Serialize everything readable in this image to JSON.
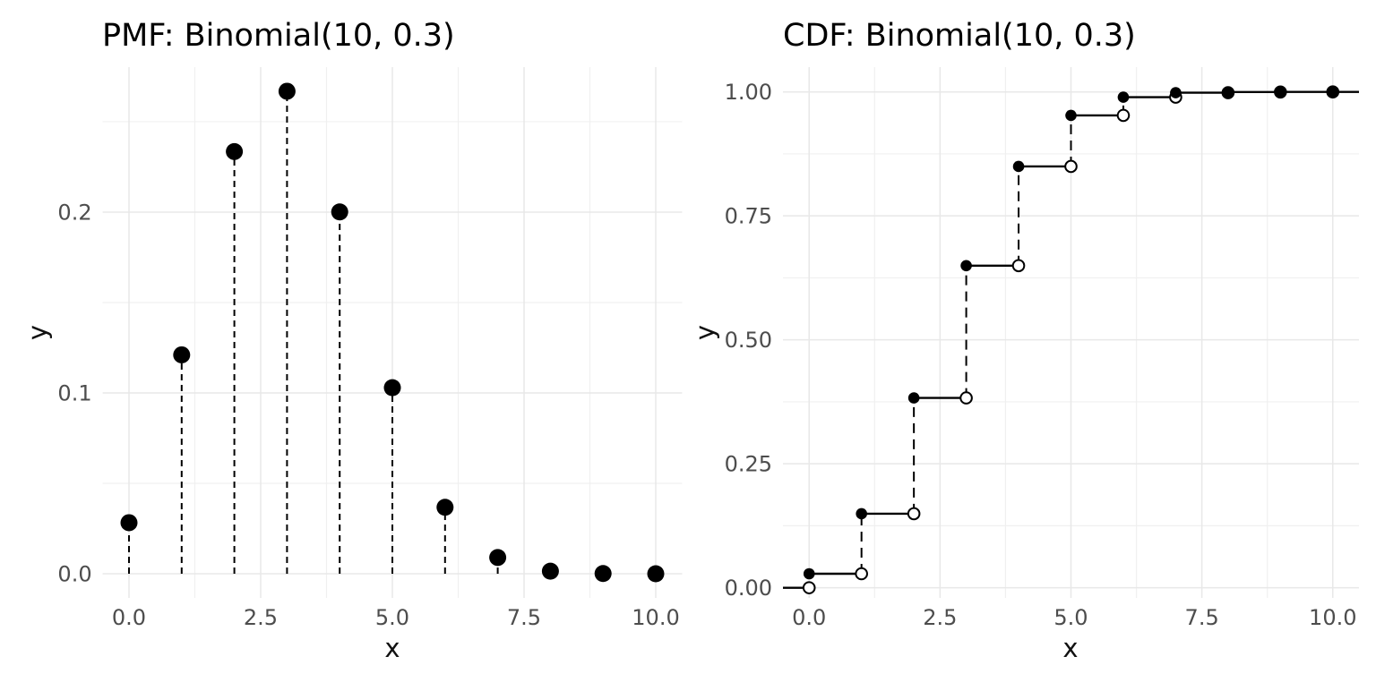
{
  "figure": {
    "background": "#ffffff",
    "grid_major_color": "#e8e8e8",
    "grid_minor_color": "#f0f0f0",
    "data_color": "#000000",
    "open_point_fill": "#ffffff",
    "tick_label_color": "#4d4d4d"
  },
  "chart_data": [
    {
      "type": "stem",
      "title": "PMF: Binomial(10, 0.3)",
      "xlabel": "x",
      "ylabel": "y",
      "x": [
        0,
        1,
        2,
        3,
        4,
        5,
        6,
        7,
        8,
        9,
        10
      ],
      "y": [
        0.0282475,
        0.1210608,
        0.2334744,
        0.2668279,
        0.2001209,
        0.1029193,
        0.0367569,
        0.0090017,
        0.0014467,
        0.0001378,
        5.9e-06
      ],
      "stem_baseline": 0,
      "stem_style": "dashed",
      "xlim": [
        -0.5,
        10.5
      ],
      "ylim": [
        -0.01335,
        0.28017
      ],
      "x_ticks": {
        "values": [
          0,
          2.5,
          5,
          7.5,
          10
        ],
        "labels": [
          "0.0",
          "2.5",
          "5.0",
          "7.5",
          "10.0"
        ]
      },
      "x_minor": [
        1.25,
        3.75,
        6.25,
        8.75
      ],
      "y_ticks": {
        "values": [
          0,
          0.1,
          0.2
        ],
        "labels": [
          "0.0",
          "0.1",
          "0.2"
        ]
      },
      "y_minor": [
        0.05,
        0.15,
        0.25
      ],
      "grid": true,
      "legend": false
    },
    {
      "type": "step",
      "title": "CDF: Binomial(10, 0.3)",
      "xlabel": "x",
      "ylabel": "y",
      "x": [
        0,
        1,
        2,
        3,
        4,
        5,
        6,
        7,
        8,
        9,
        10
      ],
      "y": [
        0.0282475,
        0.1493083,
        0.3827828,
        0.6496107,
        0.8497317,
        0.952651,
        0.9894079,
        0.9984096,
        0.9998563,
        0.9999941,
        1.0
      ],
      "y_before_first": 0,
      "riser_style": "dashed",
      "open_points_at_jumps": true,
      "xlim": [
        -0.5,
        10.5
      ],
      "ylim": [
        -0.0205,
        1.05
      ],
      "x_ticks": {
        "values": [
          0,
          2.5,
          5,
          7.5,
          10
        ],
        "labels": [
          "0.0",
          "2.5",
          "5.0",
          "7.5",
          "10.0"
        ]
      },
      "x_minor": [
        1.25,
        3.75,
        6.25,
        8.75
      ],
      "y_ticks": {
        "values": [
          0,
          0.25,
          0.5,
          0.75,
          1.0
        ],
        "labels": [
          "0.00",
          "0.25",
          "0.50",
          "0.75",
          "1.00"
        ]
      },
      "y_minor": [
        0.125,
        0.375,
        0.625,
        0.875
      ],
      "grid": true,
      "legend": false
    }
  ]
}
